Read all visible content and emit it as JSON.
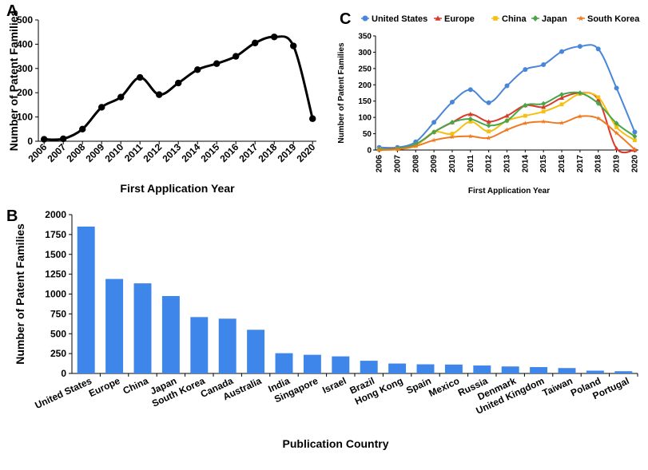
{
  "panels": [
    "A",
    "B",
    "C"
  ],
  "chart_data": [
    {
      "id": "A",
      "type": "line",
      "xlabel": "First Application Year",
      "ylabel": "Number of Patent Families",
      "x": [
        "2006",
        "2007",
        "2008",
        "2009",
        "2010",
        "2011",
        "2012",
        "2013",
        "2014",
        "2015",
        "2016",
        "2017",
        "2018",
        "2019",
        "2020"
      ],
      "values": [
        8,
        10,
        50,
        140,
        182,
        263,
        192,
        240,
        295,
        320,
        350,
        405,
        430,
        393,
        93
      ],
      "ylim": [
        0,
        500
      ],
      "yticks": [
        0,
        100,
        200,
        300,
        400,
        500
      ],
      "color": "#000000",
      "grid": false
    },
    {
      "id": "B",
      "type": "bar",
      "xlabel": "Publication Country",
      "ylabel": "Number of Patent Families",
      "categories": [
        "United States",
        "Europe",
        "China",
        "Japan",
        "South Korea",
        "Canada",
        "Australia",
        "India",
        "Singapore",
        "Israel",
        "Brazil",
        "Hong Kong",
        "Spain",
        "Mexico",
        "Russia",
        "Denmark",
        "United Kingdom",
        "Taiwan",
        "Poland",
        "Portugal"
      ],
      "values": [
        1850,
        1190,
        1135,
        975,
        710,
        690,
        550,
        255,
        235,
        215,
        160,
        125,
        115,
        112,
        100,
        88,
        80,
        68,
        35,
        28
      ],
      "ylim": [
        0,
        2000
      ],
      "yticks": [
        0,
        250,
        500,
        750,
        1000,
        1250,
        1500,
        1750,
        2000
      ],
      "color": "#3f86ea",
      "grid": false
    },
    {
      "id": "C",
      "type": "line",
      "xlabel": "First Application Year",
      "ylabel": "Number of Patent Families",
      "x": [
        "2006",
        "2007",
        "2008",
        "2009",
        "2010",
        "2011",
        "2012",
        "2013",
        "2014",
        "2015",
        "2016",
        "2017",
        "2018",
        "2019",
        "2020"
      ],
      "ylim": [
        0,
        350
      ],
      "yticks": [
        0,
        50,
        100,
        150,
        200,
        250,
        300,
        350
      ],
      "legend_position": "top",
      "grid": false,
      "series": [
        {
          "name": "United States",
          "color": "#4a86d8",
          "marker": "circle",
          "values": [
            8,
            8,
            25,
            85,
            147,
            185,
            145,
            197,
            247,
            262,
            302,
            318,
            310,
            190,
            55
          ]
        },
        {
          "name": "Europe",
          "color": "#d93b2b",
          "marker": "triangle",
          "values": [
            2,
            5,
            15,
            55,
            85,
            110,
            87,
            105,
            137,
            132,
            160,
            175,
            155,
            5,
            0
          ]
        },
        {
          "name": "China",
          "color": "#f5c012",
          "marker": "square",
          "values": [
            2,
            3,
            13,
            55,
            50,
            87,
            57,
            90,
            105,
            118,
            140,
            172,
            162,
            70,
            30
          ]
        },
        {
          "name": "Japan",
          "color": "#4aa54a",
          "marker": "diamond",
          "values": [
            2,
            4,
            18,
            55,
            85,
            95,
            75,
            90,
            137,
            142,
            170,
            175,
            143,
            82,
            42
          ]
        },
        {
          "name": "South Korea",
          "color": "#ef7a22",
          "marker": "star",
          "values": [
            0,
            2,
            12,
            30,
            40,
            42,
            37,
            62,
            82,
            87,
            83,
            103,
            97,
            52,
            2
          ]
        }
      ]
    }
  ]
}
